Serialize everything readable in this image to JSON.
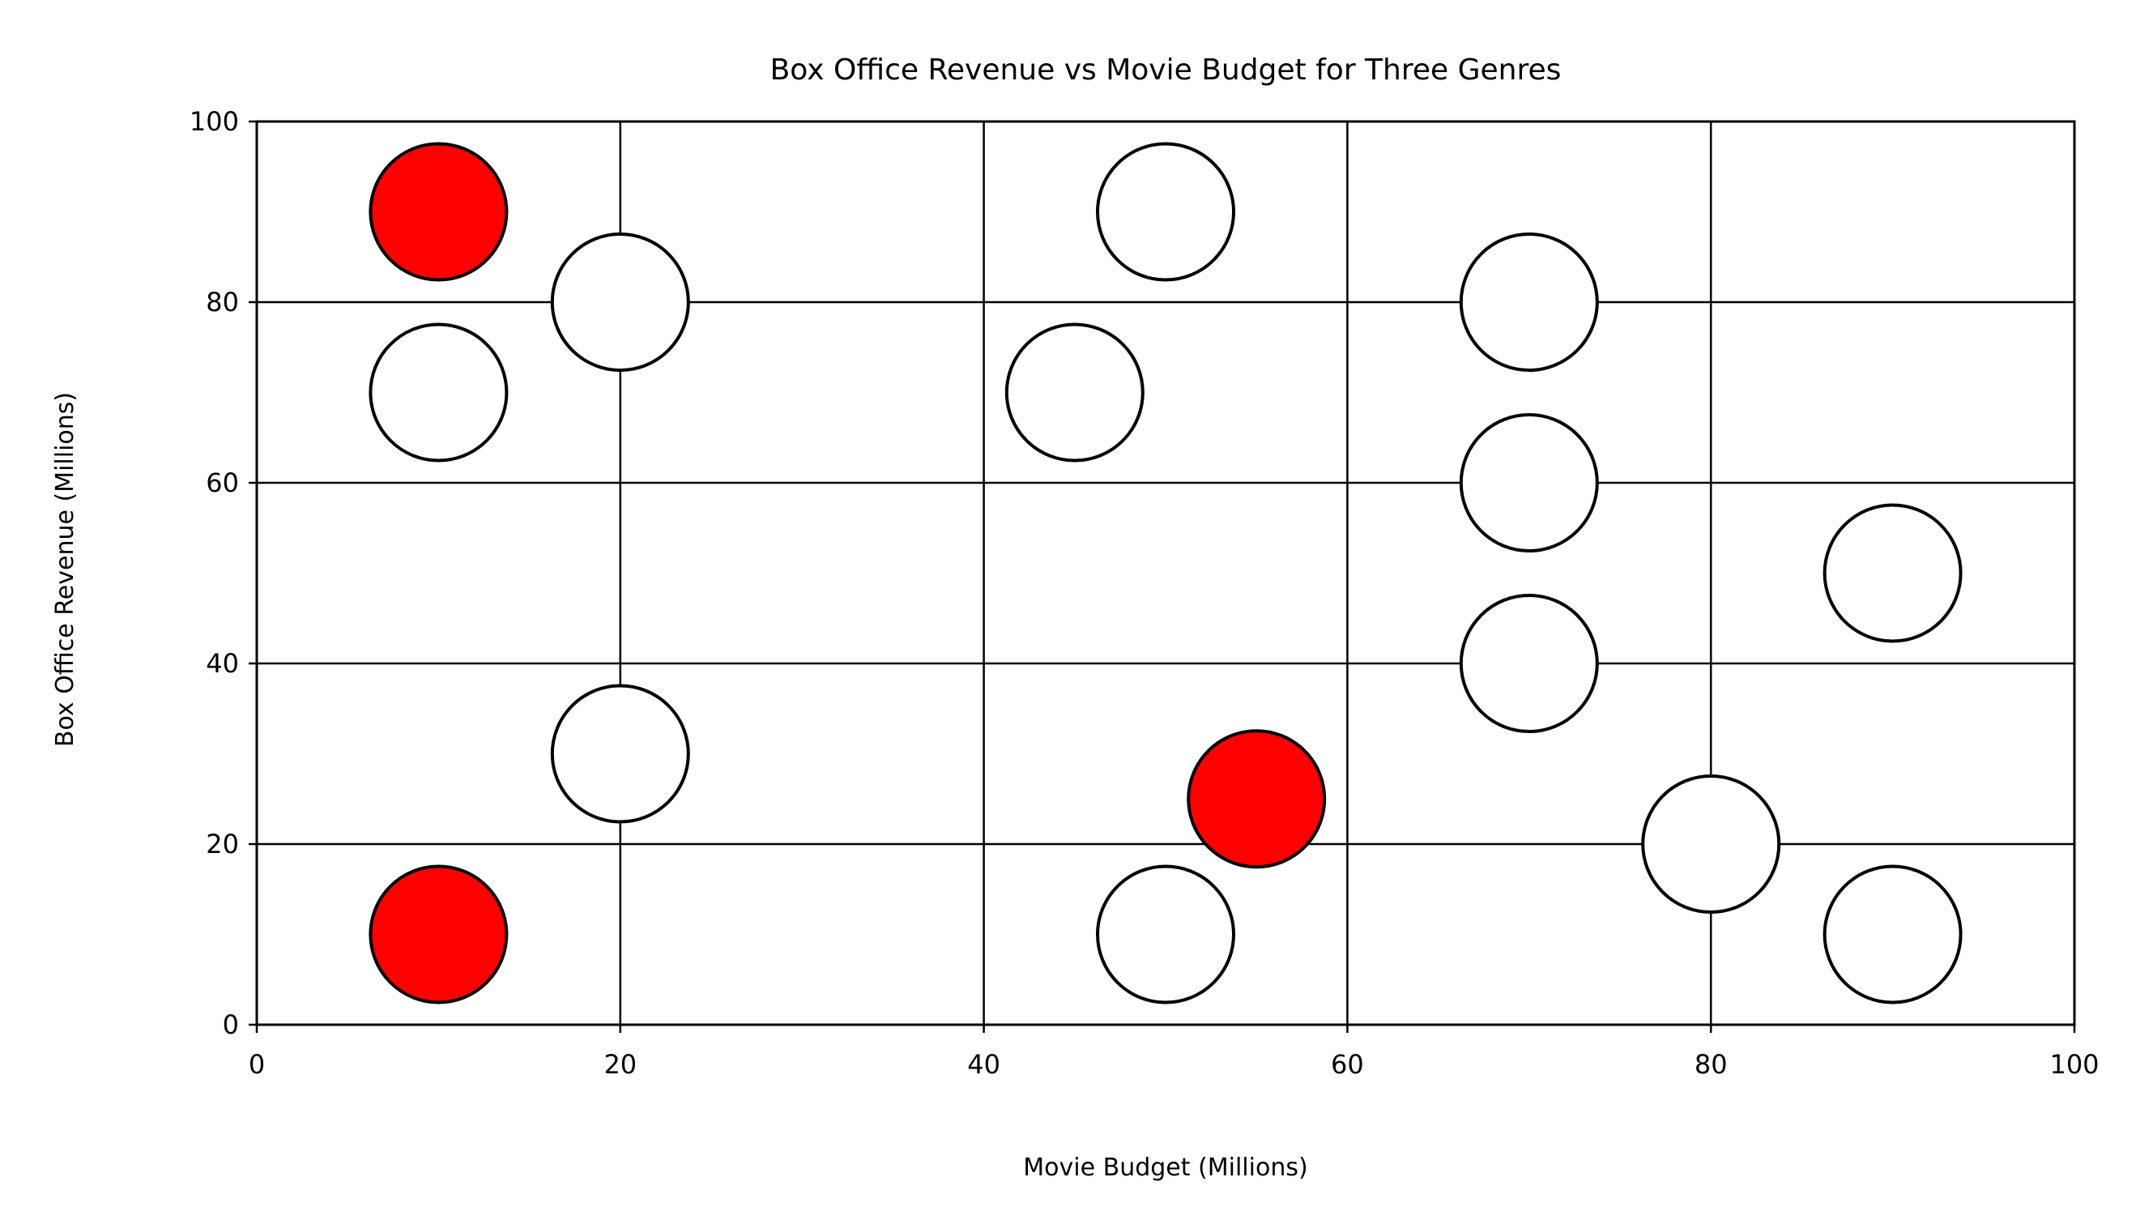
{
  "chart_data": {
    "type": "scatter",
    "title": "Box Office Revenue vs Movie Budget for Three Genres",
    "xlabel": "Movie Budget (Millions)",
    "ylabel": "Box Office Revenue (Millions)",
    "xlim": [
      0,
      100
    ],
    "ylim": [
      0,
      100
    ],
    "xticks": [
      "0",
      "20",
      "40",
      "60",
      "80",
      "100"
    ],
    "yticks": [
      "0",
      "20",
      "40",
      "60",
      "80",
      "100"
    ],
    "grid": true,
    "colors": {
      "highlight": "#ff0000",
      "default": "#ffffff",
      "edge": "#000000"
    },
    "series": [
      {
        "points": [
          {
            "x": 10,
            "y": 90,
            "highlight": true
          },
          {
            "x": 10,
            "y": 70
          },
          {
            "x": 10,
            "y": 10,
            "highlight": true
          },
          {
            "x": 20,
            "y": 80
          },
          {
            "x": 20,
            "y": 30
          },
          {
            "x": 45,
            "y": 70
          },
          {
            "x": 50,
            "y": 90
          },
          {
            "x": 50,
            "y": 10
          },
          {
            "x": 55,
            "y": 25,
            "highlight": true
          },
          {
            "x": 70,
            "y": 80
          },
          {
            "x": 70,
            "y": 60
          },
          {
            "x": 70,
            "y": 40
          },
          {
            "x": 80,
            "y": 20
          },
          {
            "x": 90,
            "y": 50
          },
          {
            "x": 90,
            "y": 10
          }
        ]
      }
    ]
  }
}
